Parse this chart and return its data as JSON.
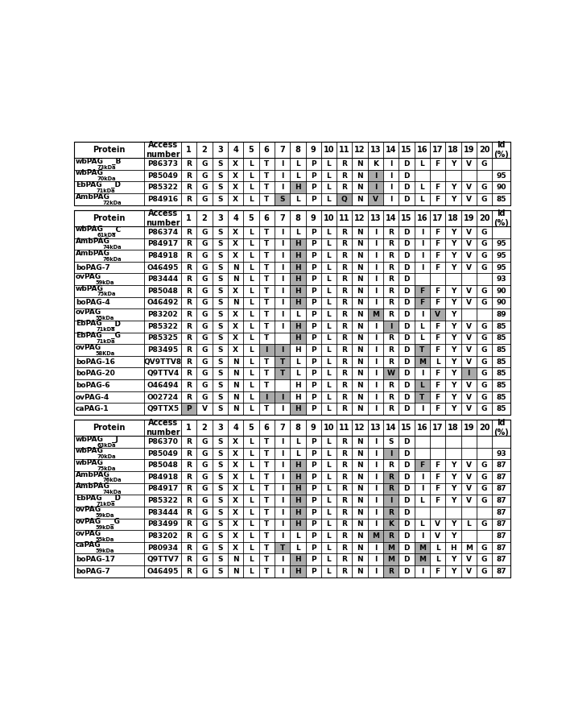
{
  "tables": [
    {
      "rows": [
        {
          "protein": "wbPAG",
          "size": "73kDa",
          "suffix": "_B",
          "access": "P86373",
          "aa": [
            "R",
            "G",
            "S",
            "X",
            "L",
            "T",
            "I",
            "L",
            "P",
            "L",
            "R",
            "N",
            "K",
            "I",
            "D",
            "L",
            "F",
            "Y",
            "V",
            "G"
          ],
          "id": ""
        },
        {
          "protein": "wbPAG",
          "size": "70kDa",
          "suffix": "",
          "access": "P85049",
          "aa": [
            "R",
            "G",
            "S",
            "X",
            "L",
            "T",
            "I",
            "L",
            "P",
            "L",
            "R",
            "N",
            "I",
            "I",
            "D",
            "",
            "",
            "",
            "",
            ""
          ],
          "id": "95"
        },
        {
          "protein": "EbPAG",
          "size": "71kDa",
          "suffix": "_D",
          "access": "P85322",
          "aa": [
            "R",
            "G",
            "S",
            "X",
            "L",
            "T",
            "I",
            "H",
            "P",
            "L",
            "R",
            "N",
            "I",
            "I",
            "D",
            "L",
            "F",
            "Y",
            "V",
            "G"
          ],
          "id": "90"
        },
        {
          "protein": "AmbPAG",
          "size": "72kDa",
          "suffix": "",
          "access": "P84916",
          "aa": [
            "R",
            "G",
            "S",
            "X",
            "L",
            "T",
            "S",
            "L",
            "P",
            "L",
            "Q",
            "N",
            "V",
            "I",
            "D",
            "L",
            "F",
            "Y",
            "V",
            "G"
          ],
          "id": "85"
        }
      ],
      "highlight": [
        [],
        [
          12
        ],
        [
          7,
          12
        ],
        [
          6,
          10,
          12
        ]
      ]
    },
    {
      "rows": [
        {
          "protein": "wbPAG",
          "size": "61kDa",
          "suffix": "_C",
          "access": "P86374",
          "aa": [
            "R",
            "G",
            "S",
            "X",
            "L",
            "T",
            "I",
            "L",
            "P",
            "L",
            "R",
            "N",
            "I",
            "R",
            "D",
            "I",
            "F",
            "Y",
            "V",
            "G"
          ],
          "id": ""
        },
        {
          "protein": "AmbPAG",
          "size": "74kDa",
          "suffix": "",
          "access": "P84917",
          "aa": [
            "R",
            "G",
            "S",
            "X",
            "L",
            "T",
            "I",
            "H",
            "P",
            "L",
            "R",
            "N",
            "I",
            "R",
            "D",
            "I",
            "F",
            "Y",
            "V",
            "G"
          ],
          "id": "95"
        },
        {
          "protein": "AmbPAG",
          "size": "76kDa",
          "suffix": "",
          "access": "P84918",
          "aa": [
            "R",
            "G",
            "S",
            "X",
            "L",
            "T",
            "I",
            "H",
            "P",
            "L",
            "R",
            "N",
            "I",
            "R",
            "D",
            "I",
            "F",
            "Y",
            "V",
            "G"
          ],
          "id": "95"
        },
        {
          "protein": "boPAG-7",
          "size": "",
          "suffix": "",
          "access": "O46495",
          "aa": [
            "R",
            "G",
            "S",
            "N",
            "L",
            "T",
            "I",
            "H",
            "P",
            "L",
            "R",
            "N",
            "I",
            "R",
            "D",
            "I",
            "F",
            "Y",
            "V",
            "G"
          ],
          "id": "95"
        },
        {
          "protein": "ovPAG",
          "size": "59kDa",
          "suffix": "",
          "access": "P83444",
          "aa": [
            "R",
            "G",
            "S",
            "N",
            "L",
            "T",
            "I",
            "H",
            "P",
            "L",
            "R",
            "N",
            "I",
            "R",
            "D",
            "",
            "",
            "",
            "",
            ""
          ],
          "id": "93"
        },
        {
          "protein": "wbPAG",
          "size": "75kDa",
          "suffix": "",
          "access": "P85048",
          "aa": [
            "R",
            "G",
            "S",
            "X",
            "L",
            "T",
            "I",
            "H",
            "P",
            "L",
            "R",
            "N",
            "I",
            "R",
            "D",
            "F",
            "F",
            "Y",
            "V",
            "G"
          ],
          "id": "90"
        },
        {
          "protein": "boPAG-4",
          "size": "",
          "suffix": "",
          "access": "O46492",
          "aa": [
            "R",
            "G",
            "S",
            "N",
            "L",
            "T",
            "I",
            "H",
            "P",
            "L",
            "R",
            "N",
            "I",
            "R",
            "D",
            "F",
            "F",
            "Y",
            "V",
            "G"
          ],
          "id": "90"
        },
        {
          "protein": "ovPAG",
          "size": "55kDa",
          "suffix": "",
          "access": "P83202",
          "aa": [
            "R",
            "G",
            "S",
            "X",
            "L",
            "T",
            "I",
            "L",
            "P",
            "L",
            "R",
            "N",
            "M",
            "R",
            "D",
            "I",
            "V",
            "Y",
            "",
            ""
          ],
          "id": "89"
        },
        {
          "protein": "EbPAG",
          "size": "71kDa",
          "suffix": "_D",
          "access": "P85322",
          "aa": [
            "R",
            "G",
            "S",
            "X",
            "L",
            "T",
            "I",
            "H",
            "P",
            "L",
            "R",
            "N",
            "I",
            "I",
            "D",
            "L",
            "F",
            "Y",
            "V",
            "G"
          ],
          "id": "85"
        },
        {
          "protein": "EbPAG",
          "size": "71kDa",
          "suffix": "_G",
          "access": "P85325",
          "aa": [
            "R",
            "G",
            "S",
            "X",
            "L",
            "T",
            "",
            "H",
            "P",
            "L",
            "R",
            "N",
            "I",
            "R",
            "D",
            "L",
            "F",
            "Y",
            "V",
            "G"
          ],
          "id": "85"
        },
        {
          "protein": "ovPAG",
          "size": "58KDa",
          "suffix": "",
          "access": "P83495",
          "aa": [
            "R",
            "G",
            "S",
            "X",
            "L",
            "I",
            "I",
            "H",
            "P",
            "L",
            "R",
            "N",
            "I",
            "R",
            "D",
            "T",
            "F",
            "Y",
            "V",
            "G"
          ],
          "id": "85"
        },
        {
          "protein": "boPAG-16",
          "size": "",
          "suffix": "",
          "access": "QV9TTV8",
          "aa": [
            "R",
            "G",
            "S",
            "N",
            "L",
            "T",
            "T",
            "L",
            "P",
            "L",
            "R",
            "N",
            "I",
            "R",
            "D",
            "M",
            "L",
            "Y",
            "V",
            "G"
          ],
          "id": "85"
        },
        {
          "protein": "boPAG-20",
          "size": "",
          "suffix": "",
          "access": "Q9TTV4",
          "aa": [
            "R",
            "G",
            "S",
            "N",
            "L",
            "T",
            "T",
            "L",
            "P",
            "L",
            "R",
            "N",
            "I",
            "W",
            "D",
            "I",
            "F",
            "Y",
            "I",
            "G"
          ],
          "id": "85"
        },
        {
          "protein": "boPAG-6",
          "size": "",
          "suffix": "",
          "access": "O46494",
          "aa": [
            "R",
            "G",
            "S",
            "N",
            "L",
            "T",
            "",
            "H",
            "P",
            "L",
            "R",
            "N",
            "I",
            "R",
            "D",
            "L",
            "F",
            "Y",
            "V",
            "G"
          ],
          "id": "85"
        },
        {
          "protein": "ovPAG-4",
          "size": "",
          "suffix": "",
          "access": "O02724",
          "aa": [
            "R",
            "G",
            "S",
            "N",
            "L",
            "I",
            "I",
            "H",
            "P",
            "L",
            "R",
            "N",
            "I",
            "R",
            "D",
            "T",
            "F",
            "Y",
            "V",
            "G"
          ],
          "id": "85"
        },
        {
          "protein": "caPAG-1",
          "size": "",
          "suffix": "",
          "access": "Q9TTX5",
          "aa": [
            "P",
            "V",
            "S",
            "N",
            "L",
            "T",
            "I",
            "H",
            "P",
            "L",
            "R",
            "N",
            "I",
            "R",
            "D",
            "I",
            "F",
            "Y",
            "V",
            "G"
          ],
          "id": "85"
        }
      ],
      "highlight": [
        [],
        [
          7
        ],
        [
          7
        ],
        [
          7
        ],
        [
          7
        ],
        [
          7,
          15
        ],
        [
          7,
          15
        ],
        [
          12,
          16
        ],
        [
          7,
          13
        ],
        [
          7
        ],
        [
          5,
          6,
          15
        ],
        [
          6,
          15
        ],
        [
          6,
          13,
          18
        ],
        [
          15
        ],
        [
          5,
          6,
          15
        ],
        [
          0,
          7
        ]
      ]
    },
    {
      "rows": [
        {
          "protein": "wbPAG",
          "size": "63kDa",
          "suffix": "_J",
          "access": "P86370",
          "aa": [
            "R",
            "G",
            "S",
            "X",
            "L",
            "T",
            "I",
            "L",
            "P",
            "L",
            "R",
            "N",
            "I",
            "S",
            "D",
            "",
            "",
            "",
            "",
            ""
          ],
          "id": ""
        },
        {
          "protein": "wbPAG",
          "size": "70kDa",
          "suffix": "",
          "access": "P85049",
          "aa": [
            "R",
            "G",
            "S",
            "X",
            "L",
            "T",
            "I",
            "L",
            "P",
            "L",
            "R",
            "N",
            "I",
            "I",
            "D",
            "",
            "",
            "",
            "",
            ""
          ],
          "id": "93"
        },
        {
          "protein": "wbPAG",
          "size": "75kDa",
          "suffix": "",
          "access": "P85048",
          "aa": [
            "R",
            "G",
            "S",
            "X",
            "L",
            "T",
            "I",
            "H",
            "P",
            "L",
            "R",
            "N",
            "I",
            "R",
            "D",
            "F",
            "F",
            "Y",
            "V",
            "G"
          ],
          "id": "87"
        },
        {
          "protein": "AmbPAG",
          "size": "76kDa",
          "suffix": "",
          "access": "P84918",
          "aa": [
            "R",
            "G",
            "S",
            "X",
            "L",
            "T",
            "I",
            "H",
            "P",
            "L",
            "R",
            "N",
            "I",
            "R",
            "D",
            "I",
            "F",
            "Y",
            "V",
            "G"
          ],
          "id": "87"
        },
        {
          "protein": "AmbPAG",
          "size": "74kDa",
          "suffix": "",
          "access": "P84917",
          "aa": [
            "R",
            "G",
            "S",
            "X",
            "L",
            "T",
            "I",
            "H",
            "P",
            "L",
            "R",
            "N",
            "I",
            "R",
            "D",
            "I",
            "F",
            "Y",
            "V",
            "G"
          ],
          "id": "87"
        },
        {
          "protein": "EbPAG",
          "size": "71kDa",
          "suffix": "_D",
          "access": "P85322",
          "aa": [
            "R",
            "G",
            "S",
            "X",
            "L",
            "T",
            "I",
            "H",
            "P",
            "L",
            "R",
            "N",
            "I",
            "I",
            "D",
            "L",
            "F",
            "Y",
            "V",
            "G"
          ],
          "id": "87"
        },
        {
          "protein": "ovPAG",
          "size": "59kDa",
          "suffix": "",
          "access": "P83444",
          "aa": [
            "R",
            "G",
            "S",
            "X",
            "L",
            "T",
            "I",
            "H",
            "P",
            "L",
            "R",
            "N",
            "I",
            "R",
            "D",
            "",
            "",
            "",
            "",
            ""
          ],
          "id": "87"
        },
        {
          "protein": "ovPAG",
          "size": "59kDa",
          "suffix": "_G",
          "access": "P83499",
          "aa": [
            "R",
            "G",
            "S",
            "X",
            "L",
            "T",
            "I",
            "H",
            "P",
            "L",
            "R",
            "N",
            "I",
            "K",
            "D",
            "L",
            "V",
            "Y",
            "L",
            "G"
          ],
          "id": "87"
        },
        {
          "protein": "ovPAG",
          "size": "55kDa",
          "suffix": "",
          "access": "P83202",
          "aa": [
            "R",
            "G",
            "S",
            "X",
            "L",
            "T",
            "I",
            "L",
            "P",
            "L",
            "R",
            "N",
            "M",
            "R",
            "D",
            "I",
            "V",
            "Y",
            "",
            ""
          ],
          "id": "87"
        },
        {
          "protein": "caPAG",
          "size": "59kDa",
          "suffix": "",
          "access": "P80934",
          "aa": [
            "R",
            "G",
            "S",
            "X",
            "L",
            "T",
            "T",
            "L",
            "P",
            "L",
            "R",
            "N",
            "I",
            "M",
            "D",
            "M",
            "L",
            "H",
            "M",
            "G"
          ],
          "id": "87"
        },
        {
          "protein": "boPAG-17",
          "size": "",
          "suffix": "",
          "access": "Q9TTV7",
          "aa": [
            "R",
            "G",
            "S",
            "N",
            "L",
            "T",
            "I",
            "H",
            "P",
            "L",
            "R",
            "N",
            "I",
            "M",
            "D",
            "M",
            "L",
            "Y",
            "V",
            "G"
          ],
          "id": "87"
        },
        {
          "protein": "boPAG-7",
          "size": "",
          "suffix": "",
          "access": "O46495",
          "aa": [
            "R",
            "G",
            "S",
            "N",
            "L",
            "T",
            "I",
            "H",
            "P",
            "L",
            "R",
            "N",
            "I",
            "R",
            "D",
            "I",
            "F",
            "Y",
            "V",
            "G"
          ],
          "id": "87"
        }
      ],
      "highlight": [
        [],
        [
          13
        ],
        [
          7,
          15
        ],
        [
          7,
          13
        ],
        [
          7,
          13
        ],
        [
          7,
          13
        ],
        [
          7,
          13
        ],
        [
          7,
          13
        ],
        [
          12,
          13
        ],
        [
          6,
          13,
          15
        ],
        [
          7,
          13,
          15
        ],
        [
          7,
          13
        ]
      ]
    }
  ],
  "highlight_color": "#aaaaaa",
  "lighter_highlight": "#cccccc",
  "bg_color": "#ffffff",
  "border_color": "#000000"
}
